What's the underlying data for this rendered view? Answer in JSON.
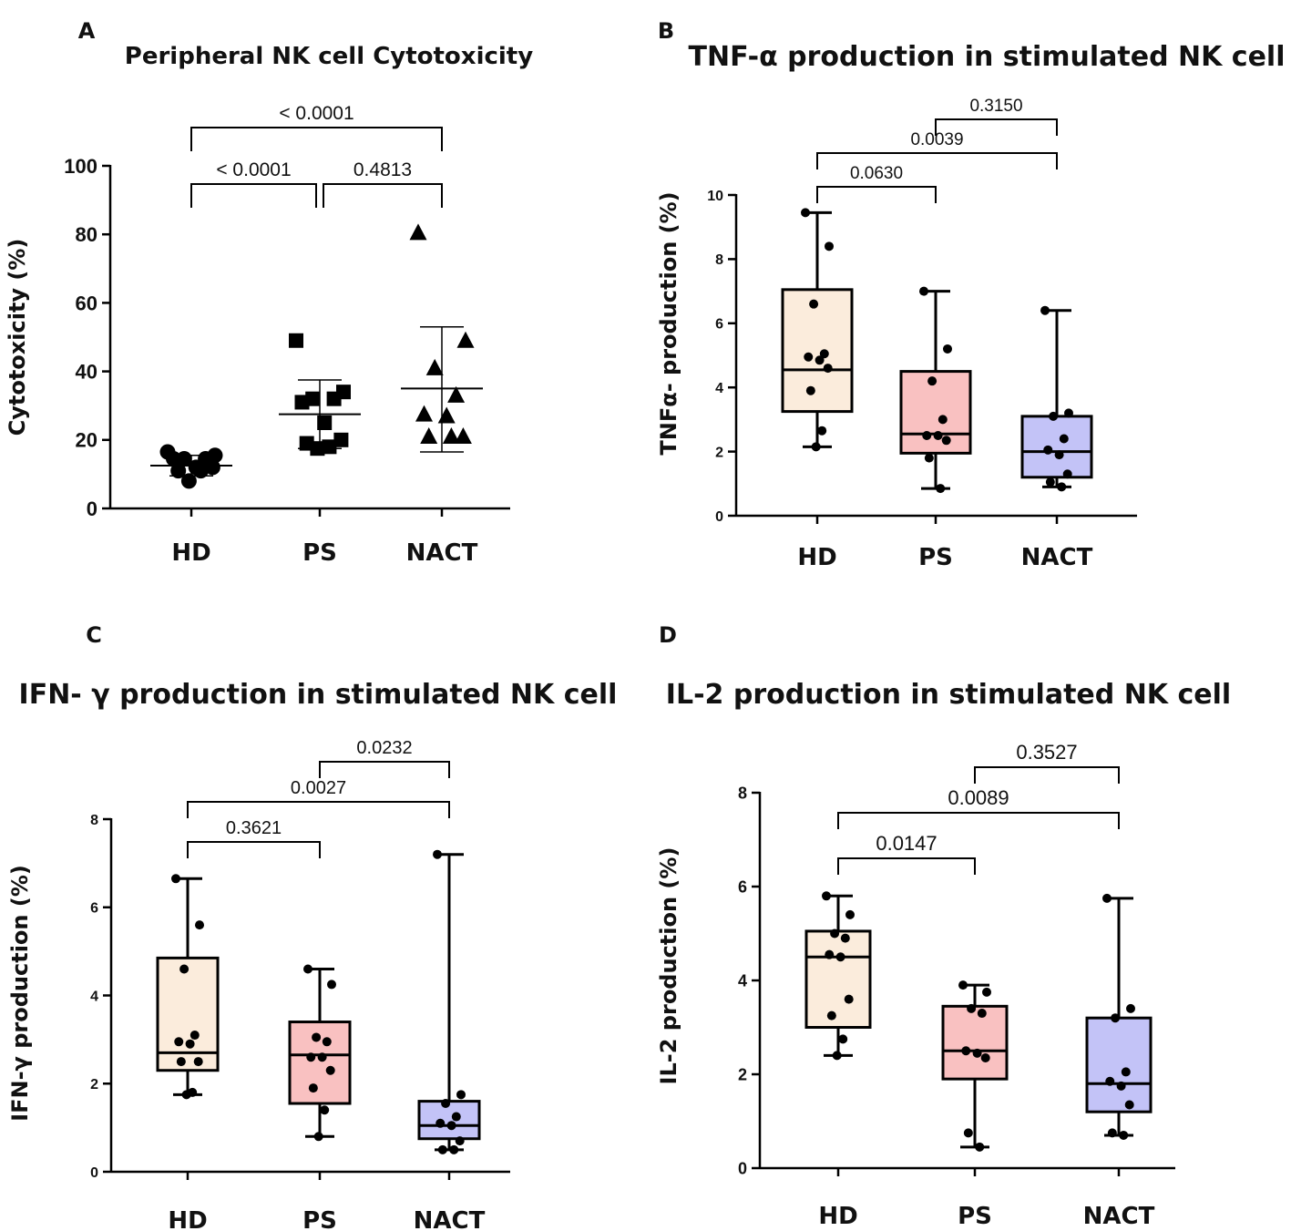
{
  "chart_data": [
    {
      "panel": "A",
      "type": "scatter",
      "title": "Peripheral NK cell Cytotoxicity",
      "ylabel": "Cytotoxicity (%)",
      "xlabel": "",
      "categories": [
        "HD",
        "PS",
        "NACT"
      ],
      "ylim": [
        0,
        100
      ],
      "yticks": [
        0,
        20,
        40,
        60,
        80,
        100
      ],
      "ytick_labels": [
        "0",
        "20",
        "40",
        "60",
        "80",
        "100"
      ],
      "groups": [
        {
          "name": "HD",
          "marker": "circle",
          "mean": 12.5,
          "sd_low": 9.5,
          "sd_high": 15.5,
          "points": [
            16.5,
            15.5,
            14.5,
            14.5,
            14.5,
            12,
            12,
            11,
            11,
            8
          ]
        },
        {
          "name": "PS",
          "marker": "square",
          "mean": 27.5,
          "sd_low": 17.5,
          "sd_high": 37.5,
          "points": [
            49,
            34,
            32,
            32,
            31,
            25,
            20,
            19,
            18,
            17.5
          ]
        },
        {
          "name": "NACT",
          "marker": "triangle",
          "mean": 35,
          "sd_low": 16.5,
          "sd_high": 53,
          "points": [
            80.5,
            49,
            41,
            33,
            27.5,
            27,
            21,
            21,
            21
          ]
        }
      ],
      "comparisons": [
        {
          "from": 0,
          "to": 1,
          "label": "< 0.0001",
          "level": 0
        },
        {
          "from": 1,
          "to": 2,
          "label": "0.4813",
          "level": 0
        },
        {
          "from": 0,
          "to": 2,
          "label": "< 0.0001",
          "level": 1
        }
      ]
    },
    {
      "panel": "B",
      "type": "box",
      "title": "TNF-α production in stimulated NK cell",
      "ylabel": "TNFα- production (%)",
      "xlabel": "",
      "categories": [
        "HD",
        "PS",
        "NACT"
      ],
      "ylim": [
        0,
        10
      ],
      "yticks": [
        0,
        2,
        4,
        6,
        8,
        10
      ],
      "ytick_labels": [
        "0",
        "2",
        "4",
        "6",
        "8",
        "10"
      ],
      "groups": [
        {
          "name": "HD",
          "color": "#fbecdc",
          "min": 2.15,
          "q1": 3.25,
          "median": 4.55,
          "q3": 7.05,
          "max": 9.45,
          "points": [
            9.45,
            8.4,
            6.6,
            5.05,
            4.95,
            4.85,
            4.6,
            3.9,
            2.65,
            2.15
          ]
        },
        {
          "name": "PS",
          "color": "#f9c1c1",
          "min": 0.85,
          "q1": 1.95,
          "median": 2.55,
          "q3": 4.5,
          "max": 7.0,
          "points": [
            7.0,
            5.2,
            4.2,
            3.0,
            2.5,
            2.5,
            2.35,
            1.8,
            0.85
          ]
        },
        {
          "name": "NACT",
          "color": "#c3c3f7",
          "min": 0.9,
          "q1": 1.2,
          "median": 2.0,
          "q3": 3.1,
          "max": 6.4,
          "points": [
            6.4,
            3.2,
            3.1,
            2.4,
            2.05,
            1.9,
            1.3,
            1.05,
            0.9
          ]
        }
      ],
      "comparisons": [
        {
          "from": 0,
          "to": 1,
          "label": "0.0630",
          "level": 0
        },
        {
          "from": 0,
          "to": 2,
          "label": "0.0039",
          "level": 1
        },
        {
          "from": 1,
          "to": 2,
          "label": "0.3150",
          "level": 2
        }
      ]
    },
    {
      "panel": "C",
      "type": "box",
      "title": "IFN- γ production in stimulated NK cell",
      "ylabel": "IFN-γ production (%)",
      "xlabel": "",
      "categories": [
        "HD",
        "PS",
        "NACT"
      ],
      "ylim": [
        0,
        8
      ],
      "yticks": [
        0,
        2,
        4,
        6,
        8
      ],
      "ytick_labels": [
        "0",
        "2",
        "4",
        "6",
        "8"
      ],
      "groups": [
        {
          "name": "HD",
          "color": "#fbecdc",
          "min": 1.75,
          "q1": 2.3,
          "median": 2.7,
          "q3": 4.85,
          "max": 6.65,
          "points": [
            6.65,
            5.6,
            4.6,
            3.1,
            2.95,
            2.9,
            2.5,
            2.5,
            1.8,
            1.75
          ]
        },
        {
          "name": "PS",
          "color": "#f9c1c1",
          "min": 0.8,
          "q1": 1.55,
          "median": 2.65,
          "q3": 3.4,
          "max": 4.6,
          "points": [
            4.6,
            4.25,
            3.05,
            2.95,
            2.6,
            2.6,
            2.3,
            1.9,
            1.4,
            0.8
          ]
        },
        {
          "name": "NACT",
          "color": "#c3c3f7",
          "min": 0.5,
          "q1": 0.75,
          "median": 1.05,
          "q3": 1.6,
          "max": 7.2,
          "points": [
            7.2,
            1.75,
            1.55,
            1.25,
            1.1,
            1.05,
            0.7,
            0.5,
            0.5
          ]
        }
      ],
      "comparisons": [
        {
          "from": 0,
          "to": 1,
          "label": "0.3621",
          "level": 0
        },
        {
          "from": 0,
          "to": 2,
          "label": "0.0027",
          "level": 1
        },
        {
          "from": 1,
          "to": 2,
          "label": "0.0232",
          "level": 2
        }
      ]
    },
    {
      "panel": "D",
      "type": "box",
      "title": "IL-2 production in stimulated NK cell",
      "ylabel": "IL-2 production (%)",
      "xlabel": "",
      "categories": [
        "HD",
        "PS",
        "NACT"
      ],
      "ylim": [
        0,
        8
      ],
      "yticks": [
        0,
        2,
        4,
        6,
        8
      ],
      "ytick_labels": [
        "0",
        "2",
        "4",
        "6",
        "8"
      ],
      "groups": [
        {
          "name": "HD",
          "color": "#fbecdc",
          "min": 2.4,
          "q1": 3.0,
          "median": 4.5,
          "q3": 5.05,
          "max": 5.8,
          "points": [
            5.8,
            5.4,
            5.0,
            4.9,
            4.55,
            4.5,
            3.6,
            3.25,
            2.75,
            2.4
          ]
        },
        {
          "name": "PS",
          "color": "#f9c1c1",
          "min": 0.45,
          "q1": 1.9,
          "median": 2.5,
          "q3": 3.45,
          "max": 3.9,
          "points": [
            3.9,
            3.75,
            3.4,
            3.3,
            2.5,
            2.45,
            2.35,
            0.75,
            0.45
          ]
        },
        {
          "name": "NACT",
          "color": "#c3c3f7",
          "min": 0.7,
          "q1": 1.2,
          "median": 1.8,
          "q3": 3.2,
          "max": 5.75,
          "points": [
            5.75,
            3.4,
            3.2,
            2.05,
            1.85,
            1.75,
            1.35,
            0.75,
            0.7
          ]
        }
      ],
      "comparisons": [
        {
          "from": 0,
          "to": 1,
          "label": "0.0147",
          "level": 0
        },
        {
          "from": 0,
          "to": 2,
          "label": "0.0089",
          "level": 1
        },
        {
          "from": 1,
          "to": 2,
          "label": "0.3527",
          "level": 2
        }
      ]
    }
  ]
}
